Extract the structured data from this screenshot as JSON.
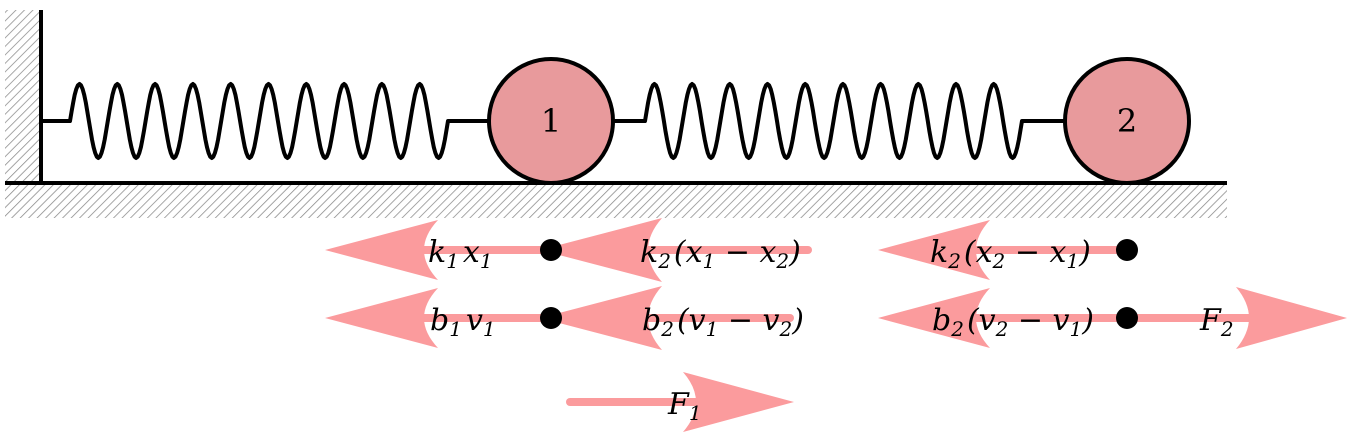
{
  "colors": {
    "mass_fill": "#e89a9c",
    "arrow": "#fb9b9d",
    "ink": "#000000",
    "hatch": "#888888"
  },
  "masses": [
    {
      "label": "1"
    },
    {
      "label": "2"
    }
  ],
  "forces": {
    "k1x1": {
      "main": "k",
      "s1": "1",
      "mid": "x",
      "s2": "1"
    },
    "k2x1x2": {
      "a": "k",
      "sa": "2",
      "open": "(x",
      "sb": "1",
      "minus": " − x",
      "sc": "2",
      "close": ")"
    },
    "k2x2x1": {
      "a": "k",
      "sa": "2",
      "open": "(x",
      "sb": "2",
      "minus": " − x",
      "sc": "1",
      "close": ")"
    },
    "b1v1": {
      "main": "b",
      "s1": "1",
      "mid": "v",
      "s2": "1"
    },
    "b2v1v2": {
      "a": "b",
      "sa": "2",
      "open": "(v",
      "sb": "1",
      "minus": " − v",
      "sc": "2",
      "close": ")"
    },
    "b2v2v1": {
      "a": "b",
      "sa": "2",
      "open": "(v",
      "sb": "2",
      "minus": " − v",
      "sc": "1",
      "close": ")"
    },
    "F1": {
      "main": "F",
      "s1": "1"
    },
    "F2": {
      "main": "F",
      "s1": "2"
    }
  }
}
